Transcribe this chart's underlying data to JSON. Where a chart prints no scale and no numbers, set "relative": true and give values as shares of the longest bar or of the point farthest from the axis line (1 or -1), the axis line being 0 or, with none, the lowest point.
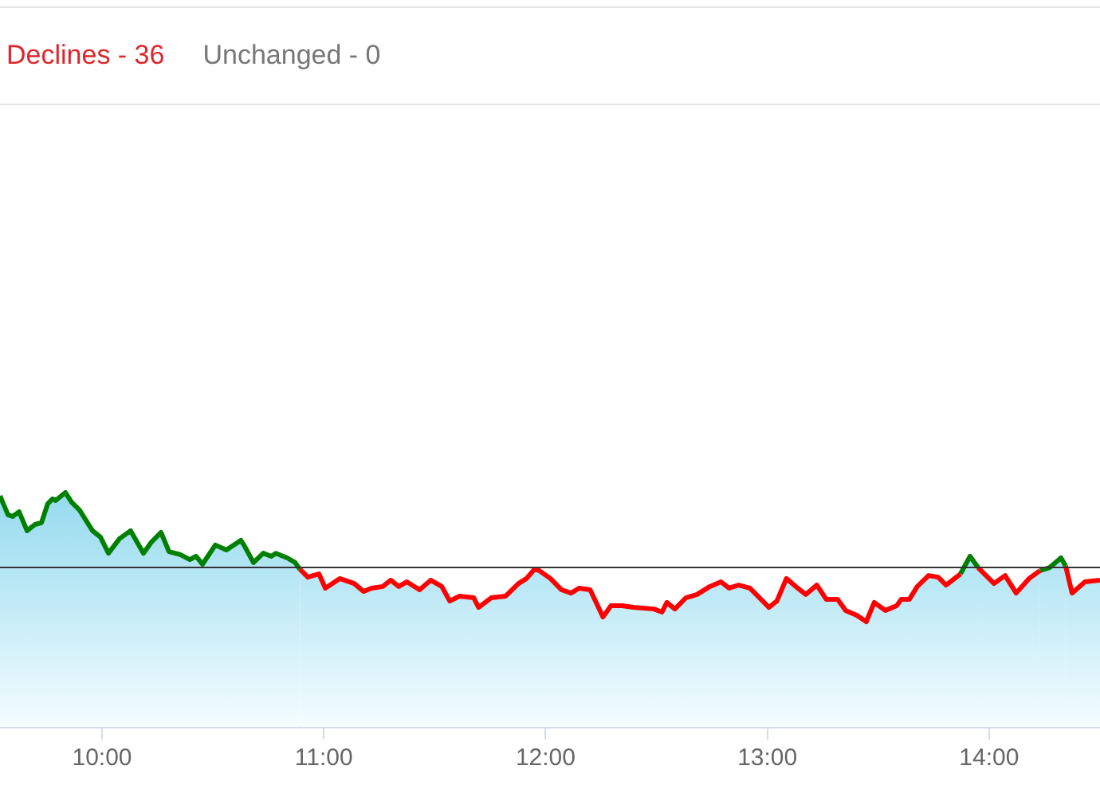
{
  "chart_data": {
    "type": "area",
    "relative": true,
    "annotations": [
      "Declines - 36",
      "Unchanged - 0"
    ],
    "xlim": [
      9.54,
      14.5
    ],
    "xticks": [
      {
        "value": 10,
        "label": "10:00"
      },
      {
        "value": 11,
        "label": "11:00"
      },
      {
        "value": 12,
        "label": "12:00"
      },
      {
        "value": 13,
        "label": "13:00"
      },
      {
        "value": 14,
        "label": "14:00"
      }
    ],
    "grid": false,
    "legend": false,
    "ref_lines": [
      {
        "axis": "y",
        "value": 0.68,
        "color": "#333333"
      }
    ],
    "series": [
      {
        "color": "#008000",
        "x": [
          9.54,
          9.576,
          9.597,
          9.626,
          9.662,
          9.698,
          9.727,
          9.755,
          9.777,
          9.791,
          9.835,
          9.863,
          9.899,
          9.957,
          9.993,
          10.029,
          10.079,
          10.129,
          10.187,
          10.223,
          10.266,
          10.302,
          10.353,
          10.396,
          10.424,
          10.453,
          10.511,
          10.561,
          10.626,
          10.64,
          10.683,
          10.727,
          10.763,
          10.784,
          10.835,
          10.871,
          10.892
        ],
        "values": [
          0.986,
          0.905,
          0.898,
          0.918,
          0.837,
          0.864,
          0.871,
          0.952,
          0.973,
          0.966,
          1,
          0.959,
          0.925,
          0.837,
          0.81,
          0.741,
          0.803,
          0.837,
          0.741,
          0.789,
          0.83,
          0.748,
          0.735,
          0.714,
          0.728,
          0.694,
          0.776,
          0.755,
          0.796,
          0.776,
          0.701,
          0.741,
          0.728,
          0.741,
          0.721,
          0.701,
          0.673
        ]
      },
      {
        "color": "#ff0000",
        "x": [
          10.892,
          10.928,
          10.978,
          11.007,
          11.072,
          11.137,
          11.18,
          11.216,
          11.266,
          11.302,
          11.338,
          11.374,
          11.432,
          11.482,
          11.532,
          11.568,
          11.612,
          11.676,
          11.698,
          11.755,
          11.82,
          11.878,
          11.914,
          11.95,
          11.971,
          12.022,
          12.072,
          12.115,
          12.151,
          12.201,
          12.259,
          12.295,
          12.345,
          12.396,
          12.489,
          12.525,
          12.547,
          12.583,
          12.633,
          12.683,
          12.741,
          12.791,
          12.827,
          12.871,
          12.921,
          12.957,
          13.007,
          13.043,
          13.086,
          13.137,
          13.173,
          13.223,
          13.266,
          13.317,
          13.353,
          13.403,
          13.446,
          13.482,
          13.532,
          13.583,
          13.604,
          13.64,
          13.676,
          13.727,
          13.77,
          13.806,
          13.871
        ],
        "values": [
          0.673,
          0.639,
          0.653,
          0.592,
          0.633,
          0.612,
          0.578,
          0.592,
          0.599,
          0.626,
          0.599,
          0.619,
          0.585,
          0.626,
          0.599,
          0.537,
          0.558,
          0.551,
          0.51,
          0.551,
          0.558,
          0.612,
          0.633,
          0.673,
          0.667,
          0.633,
          0.585,
          0.571,
          0.592,
          0.585,
          0.469,
          0.517,
          0.517,
          0.51,
          0.503,
          0.49,
          0.531,
          0.503,
          0.551,
          0.565,
          0.599,
          0.619,
          0.592,
          0.605,
          0.592,
          0.558,
          0.51,
          0.537,
          0.633,
          0.592,
          0.565,
          0.605,
          0.544,
          0.544,
          0.497,
          0.476,
          0.449,
          0.531,
          0.497,
          0.517,
          0.544,
          0.544,
          0.599,
          0.646,
          0.639,
          0.605,
          0.653
        ]
      },
      {
        "color": "#008000",
        "x": [
          13.871,
          13.914,
          13.95
        ],
        "values": [
          0.653,
          0.728,
          0.68
        ]
      },
      {
        "color": "#ff0000",
        "x": [
          13.95,
          14.022,
          14.072,
          14.122,
          14.18,
          14.23
        ],
        "values": [
          0.68,
          0.612,
          0.646,
          0.571,
          0.633,
          0.667
        ]
      },
      {
        "color": "#008000",
        "x": [
          14.23,
          14.273,
          14.324,
          14.345
        ],
        "values": [
          0.667,
          0.68,
          0.721,
          0.687
        ]
      },
      {
        "color": "#ff0000",
        "x": [
          14.345,
          14.374,
          14.432,
          14.5
        ],
        "values": [
          0.687,
          0.571,
          0.619,
          0.626
        ]
      }
    ]
  }
}
